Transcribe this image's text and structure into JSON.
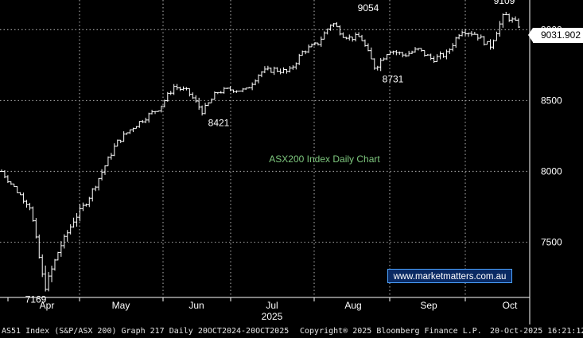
{
  "chart_data": {
    "type": "bar",
    "title": "ASX200 Index Daily Chart",
    "title_color": "#7ec87e",
    "bar_color": "#ffffff",
    "background": "#000000",
    "grid": true,
    "grid_color": "#9a9a9a",
    "ylim": [
      7110,
      9210
    ],
    "yticks": [
      7500,
      8000,
      8500,
      9000
    ],
    "month_labels": [
      "Apr",
      "May",
      "Jun",
      "Jul",
      "Aug",
      "Sep",
      "Oct"
    ],
    "year_label": "2025",
    "last_value": "9031.902",
    "annotations": [
      {
        "text": "9054",
        "value": 9054
      },
      {
        "text": "9109",
        "value": 9109
      },
      {
        "text": "8731",
        "value": 8731
      },
      {
        "text": "8421",
        "value": 8421
      },
      {
        "text": "7169",
        "value": 7169
      }
    ],
    "anchors": [
      {
        "v": 8000,
        "r": 40
      },
      {
        "v": 7870,
        "r": 0
      },
      {
        "v": 7750,
        "r": 50
      },
      {
        "v": 7169,
        "r": 110
      },
      {
        "v": 7450,
        "r": 80
      },
      {
        "v": 7650,
        "r": 70
      },
      {
        "v": 7800,
        "r": 40
      },
      {
        "v": 8000,
        "r": 40
      },
      {
        "v": 8200,
        "r": 40
      },
      {
        "v": 8300,
        "r": 35
      },
      {
        "v": 8380,
        "r": 35
      },
      {
        "v": 8450,
        "r": 30
      },
      {
        "v": 8600,
        "r": 30
      },
      {
        "v": 8560,
        "r": 25
      },
      {
        "v": 8421,
        "r": 50
      },
      {
        "v": 8560,
        "r": 25
      },
      {
        "v": 8580,
        "r": 25
      },
      {
        "v": 8570,
        "r": 25
      },
      {
        "v": 8700,
        "r": 40
      },
      {
        "v": 8720,
        "r": 30
      },
      {
        "v": 8700,
        "r": 40
      },
      {
        "v": 8850,
        "r": 30
      },
      {
        "v": 8900,
        "r": 30
      },
      {
        "v": 9054,
        "r": 40
      },
      {
        "v": 8940,
        "r": 30
      },
      {
        "v": 8950,
        "r": 30
      },
      {
        "v": 8731,
        "r": 60
      },
      {
        "v": 8860,
        "r": 35
      },
      {
        "v": 8820,
        "r": 35
      },
      {
        "v": 8860,
        "r": 35
      },
      {
        "v": 8790,
        "r": 35
      },
      {
        "v": 8830,
        "r": 35
      },
      {
        "v": 9000,
        "r": 40
      },
      {
        "v": 8970,
        "r": 35
      },
      {
        "v": 8880,
        "r": 50
      },
      {
        "v": 9109,
        "r": 50
      },
      {
        "v": 9031.902,
        "r": 30
      }
    ]
  },
  "footer": {
    "left": "AS51 Index (S&P/ASX 200) Graph 217 Daily 20OCT2024-20OCT2025",
    "center": "Copyright® 2025 Bloomberg Finance L.P.",
    "right": "20-Oct-2025 16:21:12"
  },
  "watermark": "www.marketmatters.com.au"
}
